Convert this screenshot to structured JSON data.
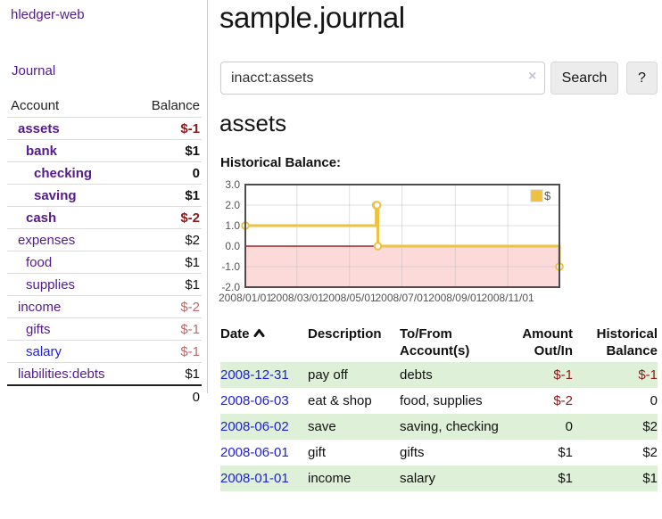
{
  "app": {
    "brand": "hledger-web"
  },
  "sidebar": {
    "journal_link": "Journal",
    "accounts": {
      "account_header": "Account",
      "balance_header": "Balance",
      "rows": [
        {
          "name": "assets",
          "balance": "$-1"
        },
        {
          "name": "bank",
          "balance": "$1"
        },
        {
          "name": "checking",
          "balance": "0"
        },
        {
          "name": "saving",
          "balance": "$1"
        },
        {
          "name": "cash",
          "balance": "$-2"
        },
        {
          "name": "expenses",
          "balance": "$2"
        },
        {
          "name": "food",
          "balance": "$1"
        },
        {
          "name": "supplies",
          "balance": "$1"
        },
        {
          "name": "income",
          "balance": "$-2"
        },
        {
          "name": "gifts",
          "balance": "$-1"
        },
        {
          "name": "salary",
          "balance": "$-1"
        },
        {
          "name": "liabilities:debts",
          "balance": "$1"
        }
      ],
      "total": "0"
    }
  },
  "main": {
    "title": "sample.journal",
    "search": {
      "value": "inacct:assets",
      "clear_icon": "×",
      "search_button": "Search",
      "help_button": "?"
    },
    "account_heading": "assets",
    "chart": {
      "label": "Historical Balance:",
      "chart_data": {
        "type": "line",
        "style": "step",
        "title": "Historical Balance",
        "legend": "$",
        "legend_position": "top-right",
        "grid": true,
        "ylim": [
          -2,
          3
        ],
        "xlim_doy": [
          1,
          366
        ],
        "y_ticks": [
          "3.0",
          "2.0",
          "1.0",
          "0.0",
          "-1.0",
          "-2.0"
        ],
        "x_ticks": [
          {
            "label": "2008/01/01",
            "doy": 1
          },
          {
            "label": "2008/03/01",
            "doy": 61
          },
          {
            "label": "2008/05/01",
            "doy": 122
          },
          {
            "label": "2008/07/01",
            "doy": 183
          },
          {
            "label": "2008/09/01",
            "doy": 245
          },
          {
            "label": "2008/11/01",
            "doy": 306
          }
        ],
        "points": [
          {
            "date": "2008-01-01",
            "doy": 1,
            "value": 1
          },
          {
            "date": "2008-06-01",
            "doy": 153,
            "value": 2
          },
          {
            "date": "2008-06-02",
            "doy": 154,
            "value": 2
          },
          {
            "date": "2008-06-03",
            "doy": 155,
            "value": 0
          },
          {
            "date": "2008-12-31",
            "doy": 366,
            "value": -1
          }
        ],
        "colors": {
          "line": "#edc240",
          "marker_fill": "#ffffff",
          "negative_fill": "#fcdada",
          "zero_line": "#8b0000",
          "grid": "#bbbbbb",
          "border": "#4d4d4d",
          "tick_text": "#545454"
        }
      }
    },
    "register": {
      "columns": [
        "Date",
        "Description",
        "To/From Account(s)",
        "Amount Out/In",
        "Historical Balance"
      ],
      "sort_icon": "chevron-up",
      "rows": [
        {
          "date": "2008-12-31",
          "description": "pay off",
          "accounts": "debts",
          "amount": "$-1",
          "balance": "$-1"
        },
        {
          "date": "2008-06-03",
          "description": "eat & shop",
          "accounts": "food, supplies",
          "amount": "$-2",
          "balance": "0"
        },
        {
          "date": "2008-06-02",
          "description": "save",
          "accounts": "saving, checking",
          "amount": "0",
          "balance": "$2"
        },
        {
          "date": "2008-06-01",
          "description": "gift",
          "accounts": "gifts",
          "amount": "$1",
          "balance": "$2"
        },
        {
          "date": "2008-01-01",
          "description": "income",
          "accounts": "salary",
          "amount": "$1",
          "balance": "$1"
        }
      ]
    }
  },
  "colors": {
    "link_purple": "#551a8b",
    "link_blue": "#2222cc",
    "negative_strong": "#8b1a1a",
    "negative_soft": "#b96a6a",
    "stripe_green": "#dff0d8"
  }
}
